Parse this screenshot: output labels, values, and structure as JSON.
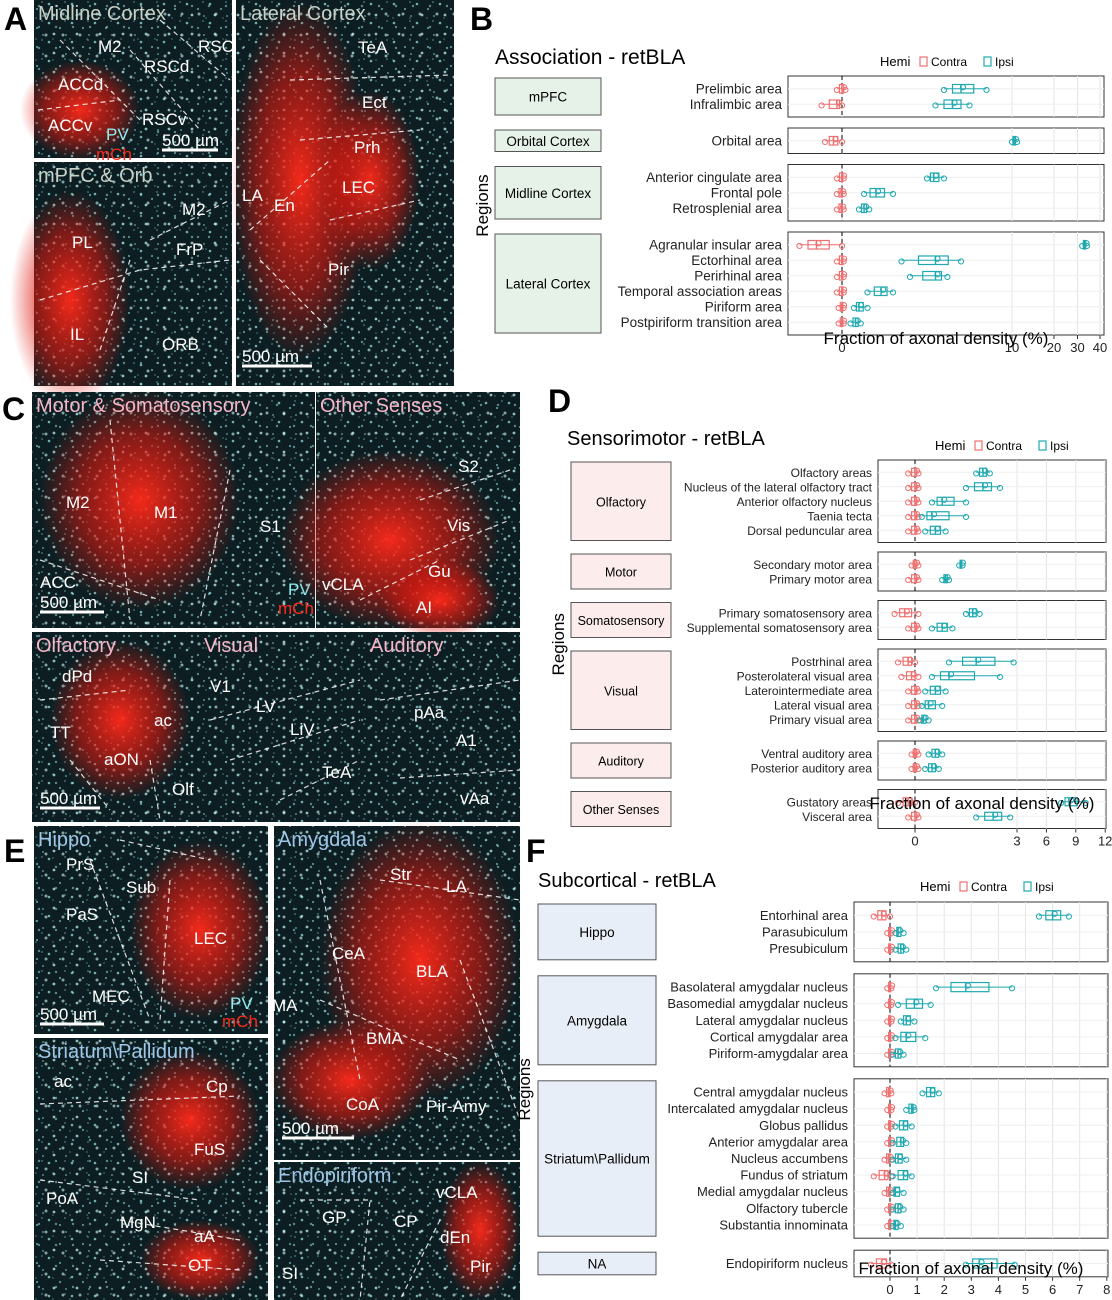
{
  "colors": {
    "ipsi": "#1fa9b0",
    "contra": "#ee7070",
    "micro_bg": "#0d1e22",
    "mch_red": "#ff2a1a",
    "pv_cyan": "#8feef2",
    "title_gray": "#c8d2c8",
    "title_pink": "#f7b6c8",
    "title_blue": "#9fc6e8",
    "box_green": "#e6f2e8",
    "box_pink": "#fcecec",
    "box_blue": "#e8eef8"
  },
  "icons": [
    "scale-bar",
    "dashed-boundary"
  ],
  "panels": {
    "A": {
      "letter": "A",
      "subpanels": [
        {
          "title": "Midline Cortex",
          "labels": [
            "M2",
            "RSCla",
            "ACCd",
            "RSCd",
            "ACCv",
            "RSCv",
            "PV",
            "mCh"
          ],
          "scale": "500 µm"
        },
        {
          "title": "mPFC & Orb",
          "labels": [
            "M2",
            "PL",
            "FrP",
            "IL",
            "ORB"
          ]
        },
        {
          "title": "Lateral Cortex",
          "labels": [
            "TeA",
            "Ect",
            "Prh",
            "LA",
            "En",
            "LEC",
            "Pir"
          ],
          "scale": "500 µm"
        }
      ]
    },
    "C": {
      "letter": "C",
      "subpanels": [
        {
          "title": "Motor & Somatosensory",
          "labels": [
            "M2",
            "M1",
            "S1",
            "ACC",
            "PV",
            "mCh"
          ],
          "scale": "500 µm"
        },
        {
          "title": "Other Senses",
          "labels": [
            "S2",
            "Vis",
            "Gu",
            "vCLA",
            "AI"
          ]
        },
        {
          "title": "Olfactory",
          "labels": [
            "dPd",
            "TT",
            "aON",
            "ac",
            "Olf"
          ],
          "scale": "500 µm"
        },
        {
          "title": "Visual",
          "labels": [
            "V1",
            "LV",
            "LiV",
            "TeA"
          ]
        },
        {
          "title": "Auditory",
          "labels": [
            "pAa",
            "A1",
            "vAa"
          ]
        }
      ]
    },
    "E": {
      "letter": "E",
      "subpanels": [
        {
          "title": "Hippo",
          "labels": [
            "PrS",
            "Sub",
            "PaS",
            "LEC",
            "MEC",
            "PV",
            "mCh"
          ],
          "scale": "500 µm"
        },
        {
          "title": "Amygdala",
          "labels": [
            "Str",
            "LA",
            "CeA",
            "BLA",
            "MA",
            "BMA",
            "CoA",
            "Pir-Amy"
          ],
          "scale": "500 µm"
        },
        {
          "title": "Striatum\\Pallidum",
          "labels": [
            "ac",
            "Cp",
            "FuS",
            "SI",
            "PoA",
            "MgN",
            "aA",
            "OT"
          ]
        },
        {
          "title": "Endopiriform",
          "labels": [
            "GP",
            "CP",
            "vCLA",
            "dEn",
            "SI",
            "Pir"
          ]
        }
      ]
    }
  },
  "chart_data": [
    {
      "letter": "B",
      "type": "boxplot",
      "title": "Association - retBLA",
      "xlabel": "Fraction of axonal density (%)",
      "ylabel": "Regions",
      "legend_title": "Hemi",
      "legend": [
        "Contra",
        "Ipsi"
      ],
      "xticks": [
        0,
        10,
        20,
        30,
        40
      ],
      "groups": [
        {
          "name": "mPFC",
          "rows": [
            {
              "label": "Prelimbic area",
              "contra": [
                -0.3,
                0,
                0.2
              ],
              "ipsi": [
                6,
                7,
                8.5
              ]
            },
            {
              "label": "Infralimbic area",
              "contra": [
                -1.2,
                -0.3,
                0
              ],
              "ipsi": [
                5.5,
                6.5,
                7.5
              ]
            }
          ]
        },
        {
          "name": "Orbital Cortex",
          "rows": [
            {
              "label": "Orbital area",
              "contra": [
                -1,
                -0.5,
                0
              ],
              "ipsi": [
                10,
                10.5,
                11.2
              ]
            }
          ]
        },
        {
          "name": "Midline Cortex",
          "rows": [
            {
              "label": "Anterior cingulate area",
              "contra": [
                -0.3,
                0,
                0.1
              ],
              "ipsi": [
                5,
                5.4,
                6
              ]
            },
            {
              "label": "Frontal pole",
              "contra": [
                -0.3,
                -0.05,
                0.1
              ],
              "ipsi": [
                1.3,
                2,
                3
              ]
            },
            {
              "label": "Retrosplenial area",
              "contra": [
                -0.3,
                -0.05,
                0.1
              ],
              "ipsi": [
                1,
                1.3,
                1.6
              ]
            }
          ]
        },
        {
          "name": "Lateral Cortex",
          "rows": [
            {
              "label": "Agranular insular area",
              "contra": [
                -2.5,
                -1.5,
                0
              ],
              "ipsi": [
                32,
                33,
                34
              ]
            },
            {
              "label": "Ectorhinal area",
              "contra": [
                -0.3,
                0,
                0.1
              ],
              "ipsi": [
                3.5,
                5.5,
                7
              ]
            },
            {
              "label": "Perirhinal area",
              "contra": [
                -0.3,
                0,
                0.1
              ],
              "ipsi": [
                4,
                5.5,
                6.2
              ]
            },
            {
              "label": "Temporal association areas",
              "contra": [
                -0.3,
                0,
                0.1
              ],
              "ipsi": [
                1.5,
                2.3,
                3
              ]
            },
            {
              "label": "Piriform area",
              "contra": [
                -0.2,
                0,
                0.1
              ],
              "ipsi": [
                0.7,
                1,
                1.5
              ]
            },
            {
              "label": "Postpiriform transition area",
              "contra": [
                -0.2,
                0,
                0.1
              ],
              "ipsi": [
                0.5,
                0.8,
                1.1
              ]
            }
          ]
        }
      ]
    },
    {
      "letter": "D",
      "type": "boxplot",
      "title": "Sensorimotor - retBLA",
      "xlabel": "Fraction of axonal density (%)",
      "ylabel": "Regions",
      "legend_title": "Hemi",
      "legend": [
        "Contra",
        "Ipsi"
      ],
      "xticks": [
        0,
        3,
        6,
        9,
        12
      ],
      "groups": [
        {
          "name": "Olfactory",
          "rows": [
            {
              "label": "Olfactory areas",
              "contra": [
                -0.2,
                0,
                0.1
              ],
              "ipsi": [
                1.8,
                2,
                2.2
              ]
            },
            {
              "label": "Nucleus of the lateral olfactory tract",
              "contra": [
                -0.2,
                0,
                0.1
              ],
              "ipsi": [
                1.5,
                2,
                2.5
              ]
            },
            {
              "label": "Anterior olfactory nucleus",
              "contra": [
                -0.2,
                0,
                0.1
              ],
              "ipsi": [
                0.5,
                0.8,
                1.5
              ]
            },
            {
              "label": "Taenia tecta",
              "contra": [
                -0.2,
                0,
                0.1
              ],
              "ipsi": [
                0.2,
                0.5,
                1.5
              ]
            },
            {
              "label": "Dorsal peduncular area",
              "contra": [
                -0.2,
                0,
                0.1
              ],
              "ipsi": [
                0.3,
                0.6,
                0.9
              ]
            }
          ]
        },
        {
          "name": "Motor",
          "rows": [
            {
              "label": "Secondary motor area",
              "contra": [
                -0.1,
                0,
                0.1
              ],
              "ipsi": [
                1.3,
                1.35,
                1.4
              ]
            },
            {
              "label": "Primary motor area",
              "contra": [
                -0.2,
                0,
                0.1
              ],
              "ipsi": [
                0.8,
                0.9,
                1
              ]
            }
          ]
        },
        {
          "name": "Somatosensory",
          "rows": [
            {
              "label": "Primary somatosensory area",
              "contra": [
                -0.6,
                -0.3,
                0.1
              ],
              "ipsi": [
                1.5,
                1.7,
                1.9
              ]
            },
            {
              "label": "Supplemental somatosensory area",
              "contra": [
                -0.2,
                0,
                0.1
              ],
              "ipsi": [
                0.5,
                0.8,
                1.1
              ]
            }
          ]
        },
        {
          "name": "Visual",
          "rows": [
            {
              "label": "Postrhinal area",
              "contra": [
                -0.5,
                -0.2,
                0
              ],
              "ipsi": [
                1,
                1.8,
                2.9
              ]
            },
            {
              "label": "Posterolateral visual area",
              "contra": [
                -0.4,
                -0.1,
                0.1
              ],
              "ipsi": [
                0.5,
                1,
                2.5
              ]
            },
            {
              "label": "Laterointermediate area",
              "contra": [
                -0.2,
                0,
                0.1
              ],
              "ipsi": [
                0.3,
                0.6,
                0.9
              ]
            },
            {
              "label": "Lateral visual area",
              "contra": [
                -0.2,
                0,
                0.1
              ],
              "ipsi": [
                0.2,
                0.4,
                0.8
              ]
            },
            {
              "label": "Primary visual area",
              "contra": [
                -0.2,
                0,
                0.1
              ],
              "ipsi": [
                0.15,
                0.25,
                0.4
              ]
            }
          ]
        },
        {
          "name": "Auditory",
          "rows": [
            {
              "label": "Ventral auditory area",
              "contra": [
                -0.1,
                0,
                0.1
              ],
              "ipsi": [
                0.4,
                0.6,
                0.8
              ]
            },
            {
              "label": "Posterior auditory area",
              "contra": [
                -0.1,
                0,
                0.1
              ],
              "ipsi": [
                0.3,
                0.5,
                0.7
              ]
            }
          ]
        },
        {
          "name": "Other Senses",
          "rows": [
            {
              "label": "Gustatory areas",
              "contra": [
                -0.5,
                -0.2,
                0
              ],
              "ipsi": [
                7.5,
                8.3,
                10
              ]
            },
            {
              "label": "Visceral area",
              "contra": [
                -0.2,
                0,
                0.1
              ],
              "ipsi": [
                1.8,
                2.3,
                2.8
              ]
            }
          ]
        }
      ]
    },
    {
      "letter": "F",
      "type": "boxplot",
      "title": "Subcortical - retBLA",
      "xlabel": "Fraction of axonal density (%)",
      "ylabel": "Regions",
      "legend_title": "Hemi",
      "legend": [
        "Contra",
        "Ipsi"
      ],
      "xticks": [
        0,
        1,
        2,
        3,
        4,
        5,
        6,
        7,
        8
      ],
      "groups": [
        {
          "name": "Hippo",
          "rows": [
            {
              "label": "Entorhinal area",
              "contra": [
                -0.6,
                -0.3,
                0
              ],
              "ipsi": [
                5.5,
                6,
                6.6
              ]
            },
            {
              "label": "Parasubiculum",
              "contra": [
                -0.1,
                0,
                0.05
              ],
              "ipsi": [
                0.2,
                0.3,
                0.5
              ]
            },
            {
              "label": "Presubiculum",
              "contra": [
                -0.1,
                0,
                0.05
              ],
              "ipsi": [
                0.2,
                0.4,
                0.6
              ]
            }
          ]
        },
        {
          "name": "Amygdala",
          "rows": [
            {
              "label": "Basolateral amygdalar nucleus",
              "contra": [
                -0.1,
                0,
                0.05
              ],
              "ipsi": [
                1.7,
                2.8,
                4.5
              ]
            },
            {
              "label": "Basomedial amygdalar nucleus",
              "contra": [
                -0.1,
                0,
                0.05
              ],
              "ipsi": [
                0.3,
                0.9,
                1.5
              ]
            },
            {
              "label": "Lateral amygdalar nucleus",
              "contra": [
                -0.1,
                0,
                0.05
              ],
              "ipsi": [
                0.4,
                0.6,
                0.9
              ]
            },
            {
              "label": "Cortical amygdalar area",
              "contra": [
                -0.1,
                0,
                0.05
              ],
              "ipsi": [
                0.2,
                0.6,
                1.3
              ]
            },
            {
              "label": "Piriform-amygdalar area",
              "contra": [
                -0.1,
                0,
                0.05
              ],
              "ipsi": [
                0.1,
                0.3,
                0.5
              ]
            }
          ]
        },
        {
          "name": "Striatum\\Pallidum",
          "rows": [
            {
              "label": "Central amygdalar nucleus",
              "contra": [
                -0.2,
                -0.05,
                0.05
              ],
              "ipsi": [
                1.2,
                1.5,
                1.8
              ]
            },
            {
              "label": "Intercalated amygdalar nucleus",
              "contra": [
                -0.1,
                0,
                0.05
              ],
              "ipsi": [
                0.6,
                0.8,
                0.9
              ]
            },
            {
              "label": "Globus pallidus",
              "contra": [
                -0.1,
                0,
                0.05
              ],
              "ipsi": [
                0.2,
                0.5,
                0.8
              ]
            },
            {
              "label": "Anterior amygdalar area",
              "contra": [
                -0.1,
                0,
                0.05
              ],
              "ipsi": [
                0.1,
                0.4,
                0.6
              ]
            },
            {
              "label": "Nucleus accumbens",
              "contra": [
                -0.2,
                -0.05,
                0.05
              ],
              "ipsi": [
                0.1,
                0.3,
                0.6
              ]
            },
            {
              "label": "Fundus of striatum",
              "contra": [
                -0.6,
                -0.2,
                0.05
              ],
              "ipsi": [
                0.1,
                0.5,
                0.8
              ]
            },
            {
              "label": "Medial amygdalar nucleus",
              "contra": [
                -0.2,
                -0.05,
                0.05
              ],
              "ipsi": [
                0.1,
                0.2,
                0.5
              ]
            },
            {
              "label": "Olfactory tubercle",
              "contra": [
                -0.1,
                0,
                0.05
              ],
              "ipsi": [
                0.1,
                0.3,
                0.5
              ]
            },
            {
              "label": "Substantia innominata",
              "contra": [
                -0.1,
                0,
                0.05
              ],
              "ipsi": [
                0.1,
                0.2,
                0.4
              ]
            }
          ]
        },
        {
          "name": "NA",
          "rows": [
            {
              "label": "Endopiriform nucleus",
              "contra": [
                -0.7,
                -0.3,
                0.05
              ],
              "ipsi": [
                2.8,
                3.3,
                4.6
              ]
            }
          ]
        }
      ]
    }
  ]
}
